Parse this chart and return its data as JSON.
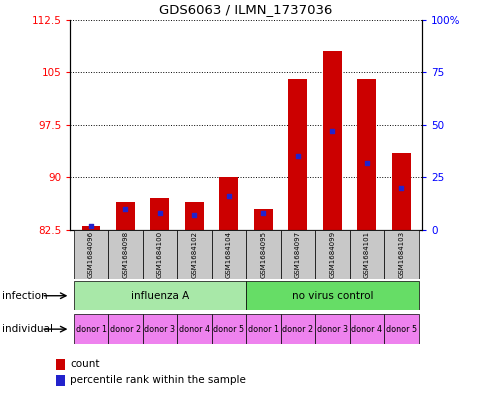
{
  "title": "GDS6063 / ILMN_1737036",
  "samples": [
    "GSM1684096",
    "GSM1684098",
    "GSM1684100",
    "GSM1684102",
    "GSM1684104",
    "GSM1684095",
    "GSM1684097",
    "GSM1684099",
    "GSM1684101",
    "GSM1684103"
  ],
  "bar_bottom": 82.5,
  "count_values": [
    83.0,
    86.5,
    87.0,
    86.5,
    90.0,
    85.5,
    104.0,
    108.0,
    104.0,
    93.5
  ],
  "percentile_values": [
    2.0,
    10.0,
    8.0,
    7.0,
    16.0,
    8.0,
    35.0,
    47.0,
    32.0,
    20.0
  ],
  "ylim_left": [
    82.5,
    112.5
  ],
  "ylim_right": [
    0,
    100
  ],
  "yticks_left": [
    82.5,
    90.0,
    97.5,
    105.0,
    112.5
  ],
  "yticks_right": [
    0,
    25,
    50,
    75,
    100
  ],
  "infection_groups": [
    {
      "label": "influenza A",
      "start": 0,
      "end": 5,
      "color": "#a8e8a8"
    },
    {
      "label": "no virus control",
      "start": 5,
      "end": 10,
      "color": "#66dd66"
    }
  ],
  "individual_labels": [
    "donor 1",
    "donor 2",
    "donor 3",
    "donor 4",
    "donor 5",
    "donor 1",
    "donor 2",
    "donor 3",
    "donor 4",
    "donor 5"
  ],
  "individual_color": "#ee82ee",
  "bar_color": "#cc0000",
  "dot_color": "#2222cc",
  "plot_bg": "#ffffff",
  "label_row1": "infection",
  "label_row2": "individual",
  "legend_count": "count",
  "legend_pct": "percentile rank within the sample",
  "sample_box_color": "#c8c8c8"
}
